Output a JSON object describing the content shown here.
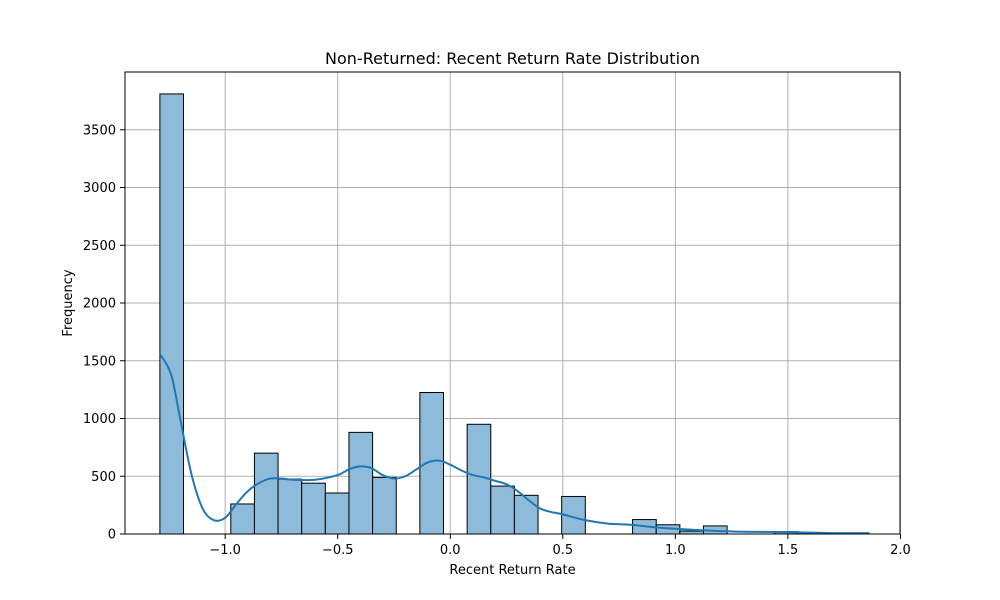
{
  "chart_data": {
    "type": "bar",
    "title": "Non-Returned: Recent Return Rate Distribution",
    "xlabel": "Recent Return Rate",
    "ylabel": "Frequency",
    "xlim": [
      -1.445,
      1.998
    ],
    "ylim": [
      0,
      4000
    ],
    "xticks": [
      -1.0,
      -0.5,
      0.0,
      0.5,
      1.0,
      1.5,
      2.0
    ],
    "xtick_labels": [
      "−1.0",
      "−0.5",
      "0.0",
      "0.5",
      "1.0",
      "1.5",
      "2.0"
    ],
    "yticks": [
      0,
      500,
      1000,
      1500,
      2000,
      2500,
      3000,
      3500
    ],
    "ytick_labels": [
      "0",
      "500",
      "1000",
      "1500",
      "2000",
      "2500",
      "3000",
      "3500"
    ],
    "grid": true,
    "bin_start": -1.29,
    "bin_width": 0.105,
    "values": [
      3810,
      0,
      0,
      260,
      700,
      475,
      440,
      355,
      880,
      490,
      0,
      1225,
      0,
      950,
      415,
      335,
      0,
      325,
      0,
      0,
      125,
      80,
      25,
      70,
      0,
      0,
      20,
      0,
      0,
      10
    ],
    "kde": {
      "x": [
        -1.29,
        -1.24,
        -1.2,
        -1.15,
        -1.1,
        -1.05,
        -1.0,
        -0.95,
        -0.9,
        -0.85,
        -0.8,
        -0.75,
        -0.7,
        -0.6,
        -0.5,
        -0.45,
        -0.4,
        -0.35,
        -0.3,
        -0.25,
        -0.2,
        -0.15,
        -0.1,
        -0.05,
        0.0,
        0.05,
        0.1,
        0.15,
        0.2,
        0.25,
        0.3,
        0.35,
        0.4,
        0.45,
        0.5,
        0.6,
        0.7,
        0.8,
        0.9,
        1.0,
        1.1,
        1.2,
        1.3,
        1.4,
        1.5,
        1.6,
        1.7,
        1.86
      ],
      "y": [
        1560,
        1380,
        1000,
        520,
        220,
        120,
        140,
        260,
        370,
        440,
        480,
        480,
        470,
        470,
        510,
        560,
        585,
        570,
        510,
        480,
        500,
        560,
        620,
        635,
        600,
        550,
        510,
        490,
        460,
        430,
        370,
        290,
        220,
        190,
        170,
        120,
        90,
        80,
        60,
        45,
        35,
        25,
        20,
        18,
        16,
        12,
        8,
        5
      ]
    },
    "colors": {
      "bar_fill": "#8fbbdb",
      "bar_edge": "#000000",
      "kde_line": "#1f77b4",
      "grid": "#b0b0b0"
    }
  }
}
